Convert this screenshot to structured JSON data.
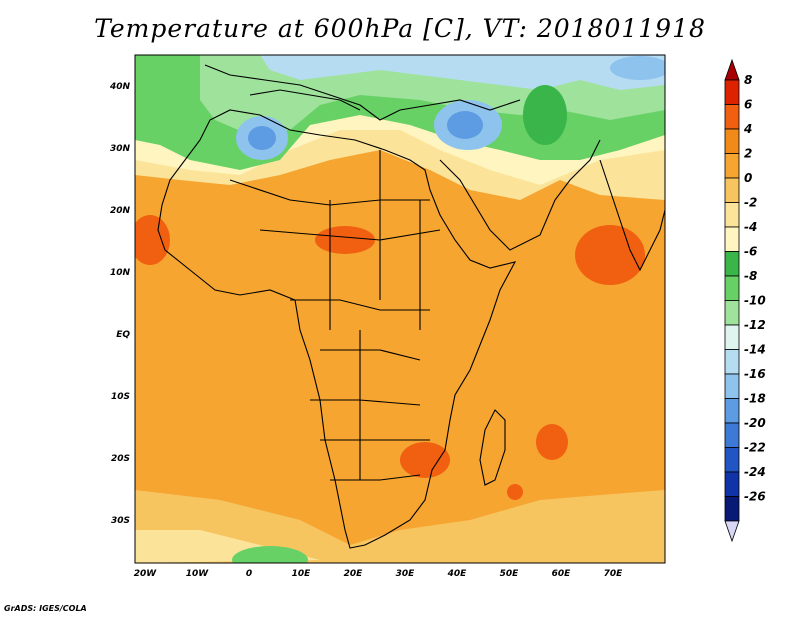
{
  "title": "Temperature at 600hPa [C], VT: 2018011918",
  "credit": "GrADS: IGES/COLA",
  "axes": {
    "x_ticks": [
      "20W",
      "10W",
      "0",
      "10E",
      "20E",
      "30E",
      "40E",
      "50E",
      "60E",
      "70E"
    ],
    "y_ticks": [
      "40N",
      "30N",
      "20N",
      "10N",
      "EQ",
      "10S",
      "20S",
      "30S"
    ]
  },
  "colorbar": {
    "labels": [
      "8",
      "6",
      "4",
      "2",
      "0",
      "-2",
      "-4",
      "-6",
      "-8",
      "-10",
      "-12",
      "-14",
      "-16",
      "-18",
      "-20",
      "-22",
      "-24",
      "-26"
    ],
    "colors": [
      "#a80000",
      "#dd2200",
      "#f06010",
      "#f28a1a",
      "#f5a530",
      "#f7c560",
      "#fbe49a",
      "#fff5c0",
      "#39b54a",
      "#67d166",
      "#9ee29b",
      "#dff3ef",
      "#b6dcf2",
      "#8ec3ee",
      "#5d9ce2",
      "#3d7ad6",
      "#2155c4",
      "#1133a8",
      "#091a76",
      "#d7d7f5"
    ]
  },
  "field_colors": {
    "warm_main": "#f5a530",
    "warm_hot": "#f06010",
    "warm_mild": "#fbe49a",
    "cool_green": "#67d166",
    "cool_lightgreen": "#9ee29b",
    "cold_blue": "#8ec3ee",
    "cold_deep": "#5d9ce2"
  }
}
